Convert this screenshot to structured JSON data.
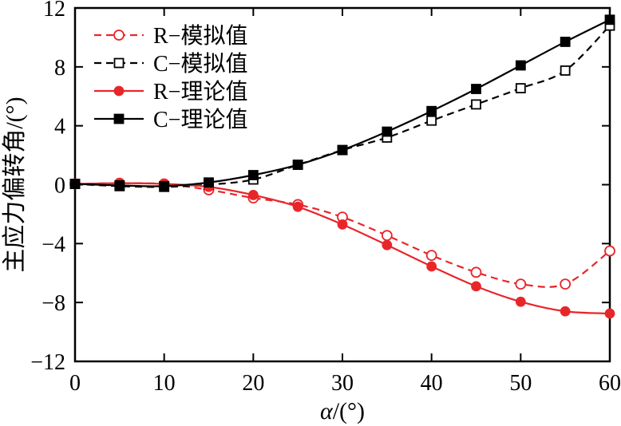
{
  "chart_data": {
    "type": "line",
    "xlabel_italic": "α",
    "xlabel_suffix": "/(°)",
    "ylabel": "主应力偏转角/(°)",
    "xlim": [
      0,
      60
    ],
    "ylim": [
      -12,
      12
    ],
    "x_ticks": [
      0,
      10,
      20,
      30,
      40,
      50,
      60
    ],
    "y_ticks": [
      12,
      8,
      4,
      0,
      -4,
      -8,
      -12
    ],
    "y_tick_labels": [
      "12",
      "8",
      "4",
      "0",
      "−4",
      "−8",
      "−12"
    ],
    "grid": false,
    "legend_position": "top-left",
    "x": [
      0,
      5,
      10,
      15,
      20,
      25,
      30,
      35,
      40,
      45,
      50,
      55,
      60
    ],
    "series": [
      {
        "name": "R−模拟值",
        "color": "#e8262a",
        "line_style": "dashed",
        "marker": "open-circle",
        "values": [
          0.05,
          0.1,
          0.05,
          -0.35,
          -0.9,
          -1.35,
          -2.2,
          -3.45,
          -4.8,
          -5.95,
          -6.75,
          -6.75,
          -4.5
        ]
      },
      {
        "name": "C−模拟值",
        "color": "#000000",
        "line_style": "dashed",
        "marker": "open-square",
        "values": [
          0.05,
          -0.1,
          -0.15,
          0.0,
          0.35,
          1.35,
          2.35,
          3.2,
          4.35,
          5.45,
          6.55,
          7.75,
          10.8
        ]
      },
      {
        "name": "R−理论值",
        "color": "#e8262a",
        "line_style": "solid",
        "marker": "filled-circle",
        "values": [
          0.05,
          0.1,
          0.05,
          -0.15,
          -0.7,
          -1.5,
          -2.7,
          -4.1,
          -5.55,
          -6.9,
          -7.95,
          -8.6,
          -8.75
        ]
      },
      {
        "name": "C−理论值",
        "color": "#000000",
        "line_style": "solid",
        "marker": "filled-square",
        "values": [
          0.05,
          -0.05,
          -0.1,
          0.15,
          0.65,
          1.35,
          2.35,
          3.6,
          5.0,
          6.5,
          8.1,
          9.7,
          11.2
        ]
      }
    ]
  }
}
